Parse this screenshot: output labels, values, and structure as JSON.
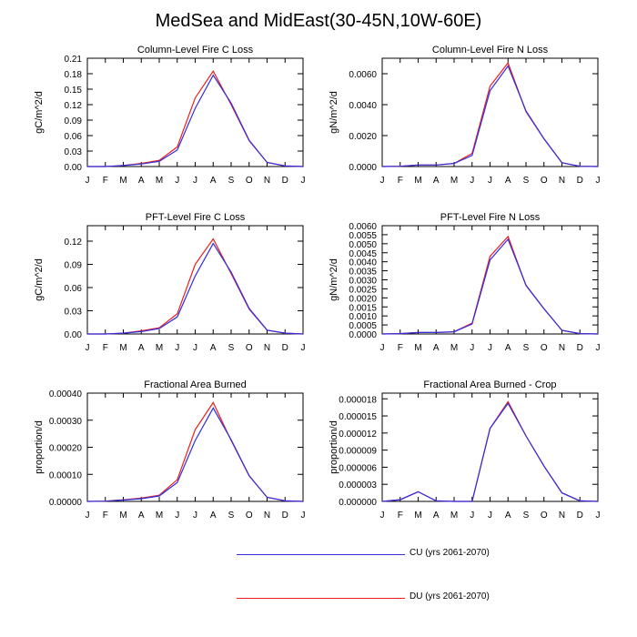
{
  "title": "MedSea and MidEast(30-45N,10W-60E)",
  "colors": {
    "CU": "#2f2fe0",
    "DU": "#ee1c1c"
  },
  "legend": [
    {
      "key": "CU",
      "label": "CU (yrs 2061-2070)",
      "color": "#2f2fe0"
    },
    {
      "key": "DU",
      "label": "DU (yrs 2061-2070)",
      "color": "#ee1c1c"
    }
  ],
  "chart_data": [
    {
      "type": "line",
      "title": "Column-Level Fire C Loss",
      "ylabel": "gC/m^2/d",
      "categories": [
        "J",
        "F",
        "M",
        "A",
        "M",
        "J",
        "J",
        "A",
        "S",
        "O",
        "N",
        "D",
        "J"
      ],
      "ylim": [
        0,
        0.21
      ],
      "yticks": [
        "0.00",
        "0.03",
        "0.06",
        "0.09",
        "0.12",
        "0.15",
        "0.18",
        "0.21"
      ],
      "series": [
        {
          "name": "CU (yrs 2061-2070)",
          "key": "CU",
          "values": [
            0.0,
            0.0,
            0.002,
            0.005,
            0.01,
            0.032,
            0.113,
            0.177,
            0.123,
            0.051,
            0.008,
            0.001,
            0.0
          ]
        },
        {
          "name": "DU (yrs 2061-2070)",
          "key": "DU",
          "values": [
            0.0,
            0.0,
            0.002,
            0.006,
            0.012,
            0.038,
            0.133,
            0.185,
            0.12,
            0.05,
            0.008,
            0.001,
            0.0
          ]
        }
      ]
    },
    {
      "type": "line",
      "title": "Column-Level Fire N Loss",
      "ylabel": "gN/m^2/d",
      "categories": [
        "J",
        "F",
        "M",
        "A",
        "M",
        "J",
        "J",
        "A",
        "S",
        "O",
        "N",
        "D",
        "J"
      ],
      "ylim": [
        0,
        0.007
      ],
      "yticks": [
        "0.0000",
        "0.0020",
        "0.0040",
        "0.0060"
      ],
      "series": [
        {
          "name": "CU (yrs 2061-2070)",
          "key": "CU",
          "values": [
            0.0,
            2e-05,
            0.0001,
            0.0001,
            0.0002,
            0.00072,
            0.0049,
            0.0065,
            0.0036,
            0.0018,
            0.00025,
            2e-05,
            0.0
          ]
        },
        {
          "name": "DU (yrs 2061-2070)",
          "key": "DU",
          "values": [
            0.0,
            2e-05,
            0.0001,
            0.0001,
            0.0002,
            0.00085,
            0.0052,
            0.0067,
            0.00355,
            0.00178,
            0.00025,
            2e-05,
            0.0
          ]
        }
      ]
    },
    {
      "type": "line",
      "title": "PFT-Level Fire C Loss",
      "ylabel": "gC/m^2/d",
      "categories": [
        "J",
        "F",
        "M",
        "A",
        "M",
        "J",
        "J",
        "A",
        "S",
        "O",
        "N",
        "D",
        "J"
      ],
      "ylim": [
        0,
        0.14
      ],
      "yticks": [
        "0.00",
        "0.03",
        "0.06",
        "0.09",
        "0.12"
      ],
      "series": [
        {
          "name": "CU (yrs 2061-2070)",
          "key": "CU",
          "values": [
            0.0,
            0.0,
            0.001,
            0.003,
            0.007,
            0.022,
            0.075,
            0.117,
            0.08,
            0.033,
            0.005,
            0.001,
            0.0
          ]
        },
        {
          "name": "DU (yrs 2061-2070)",
          "key": "DU",
          "values": [
            0.0,
            0.0,
            0.001,
            0.004,
            0.008,
            0.026,
            0.09,
            0.123,
            0.078,
            0.032,
            0.005,
            0.001,
            0.0
          ]
        }
      ]
    },
    {
      "type": "line",
      "title": "PFT-Level Fire N Loss",
      "ylabel": "gN/m^2/d",
      "categories": [
        "J",
        "F",
        "M",
        "A",
        "M",
        "J",
        "J",
        "A",
        "S",
        "O",
        "N",
        "D",
        "J"
      ],
      "ylim": [
        0,
        0.006
      ],
      "yticks": [
        "0.0000",
        "0.0005",
        "0.0010",
        "0.0015",
        "0.0020",
        "0.0025",
        "0.0030",
        "0.0035",
        "0.0040",
        "0.0045",
        "0.0050",
        "0.0055",
        "0.0060"
      ],
      "series": [
        {
          "name": "CU (yrs 2061-2070)",
          "key": "CU",
          "values": [
            0.0,
            2e-05,
            8e-05,
            8e-05,
            0.00012,
            0.00055,
            0.0041,
            0.00525,
            0.0027,
            0.0014,
            0.0002,
            2e-05,
            0.0
          ]
        },
        {
          "name": "DU (yrs 2061-2070)",
          "key": "DU",
          "values": [
            0.0,
            2e-05,
            8e-05,
            8e-05,
            0.00012,
            0.0006,
            0.0043,
            0.0054,
            0.00268,
            0.00139,
            0.0002,
            2e-05,
            0.0
          ]
        }
      ]
    },
    {
      "type": "line",
      "title": "Fractional Area Burned",
      "ylabel": "proportion/d",
      "categories": [
        "J",
        "F",
        "M",
        "A",
        "M",
        "J",
        "J",
        "A",
        "S",
        "O",
        "N",
        "D",
        "J"
      ],
      "ylim": [
        0,
        0.0004
      ],
      "yticks": [
        "0.00000",
        "0.00010",
        "0.00020",
        "0.00030",
        "0.00040"
      ],
      "series": [
        {
          "name": "CU (yrs 2061-2070)",
          "key": "CU",
          "values": [
            0.0,
            1e-06,
            5e-06,
            1e-05,
            2e-05,
            7e-05,
            0.000225,
            0.000345,
            0.000228,
            9.5e-05,
            1.5e-05,
            2e-06,
            0.0
          ]
        },
        {
          "name": "DU (yrs 2061-2070)",
          "key": "DU",
          "values": [
            0.0,
            1e-06,
            6e-06,
            1.2e-05,
            2.3e-05,
            8e-05,
            0.000265,
            0.000365,
            0.000225,
            9.4e-05,
            1.5e-05,
            2e-06,
            0.0
          ]
        }
      ]
    },
    {
      "type": "line",
      "title": "Fractional Area Burned - Crop",
      "ylabel": "proportion/d",
      "categories": [
        "J",
        "F",
        "M",
        "A",
        "M",
        "J",
        "J",
        "A",
        "S",
        "O",
        "N",
        "D",
        "J"
      ],
      "ylim": [
        0,
        1.9e-05
      ],
      "yticks": [
        "0.000000",
        "0.000003",
        "0.000006",
        "0.000009",
        "0.000012",
        "0.000015",
        "0.000018"
      ],
      "series": [
        {
          "name": "CU (yrs 2061-2070)",
          "key": "CU",
          "values": [
            0.0,
            3e-07,
            1.7e-06,
            1e-07,
            0.0,
            0.0,
            1.28e-05,
            1.72e-05,
            1.15e-05,
            6.2e-06,
            1.5e-06,
            1e-07,
            0.0
          ]
        },
        {
          "name": "DU (yrs 2061-2070)",
          "key": "DU",
          "values": [
            0.0,
            3e-07,
            1.7e-06,
            1e-07,
            0.0,
            0.0,
            1.28e-05,
            1.75e-05,
            1.15e-05,
            6.2e-06,
            1.5e-06,
            1e-07,
            0.0
          ]
        }
      ]
    }
  ]
}
